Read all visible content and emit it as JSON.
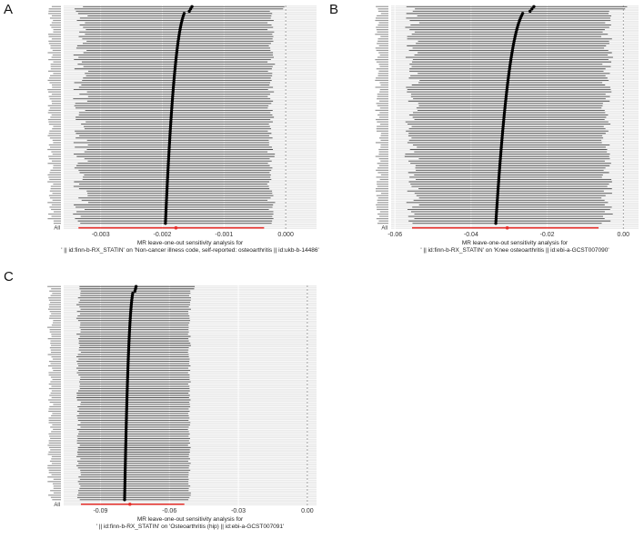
{
  "chart_data": [
    {
      "type": "forest",
      "panel_label": "A",
      "xlabel_line1": "MR leave-one-out sensitivity analysis for",
      "xlabel_line2": "' || id:finn-b-RX_STATIN' on 'Non-cancer illness code, self-reported: osteoarthritis || id:ukb-b-14486'",
      "x_ticks": [
        {
          "value": -0.003,
          "label": "-0.003"
        },
        {
          "value": -0.002,
          "label": "-0.002"
        },
        {
          "value": -0.001,
          "label": "-0.001"
        },
        {
          "value": 0.0,
          "label": "0.000"
        }
      ],
      "xlim": [
        -0.0036,
        0.0005
      ],
      "reference_line": 0,
      "n_snps": 95,
      "estimate_range": [
        -0.00195,
        -0.00152
      ],
      "ci_low_range": [
        -0.00345,
        -0.0032
      ],
      "ci_high_range": [
        -0.00045,
        -2e-05
      ],
      "overall": {
        "label": "All",
        "estimate": -0.00178,
        "ci_low": -0.00336,
        "ci_high": -0.00035
      },
      "highlight_color": "#e8302c",
      "point_color": "#000000"
    },
    {
      "type": "forest",
      "panel_label": "B",
      "xlabel_line1": "MR leave-one-out sensitivity analysis for",
      "xlabel_line2": "' || id:finn-b-RX_STATIN' on 'Knee osteoarthritis || id:ebi-a-GCST007090'",
      "x_ticks": [
        {
          "value": -0.06,
          "label": "-0.06"
        },
        {
          "value": -0.04,
          "label": "-0.04"
        },
        {
          "value": -0.02,
          "label": "-0.02"
        },
        {
          "value": 0.0,
          "label": "0.00"
        }
      ],
      "xlim": [
        -0.061,
        0.004
      ],
      "reference_line": 0,
      "n_snps": 95,
      "estimate_range": [
        -0.0335,
        -0.0235
      ],
      "ci_low_range": [
        -0.0575,
        -0.0535
      ],
      "ci_high_range": [
        -0.0095,
        0.001
      ],
      "overall": {
        "label": "All",
        "estimate": -0.0305,
        "ci_low": -0.0555,
        "ci_high": -0.0065
      },
      "highlight_color": "#e8302c",
      "point_color": "#000000"
    },
    {
      "type": "forest",
      "panel_label": "C",
      "xlabel_line1": "MR leave-one-out sensitivity analysis for",
      "xlabel_line2": "' || id:finn-b-RX_STATIN' on 'Osteoarthritis (hip) || id:ebi-a-GCST007091'",
      "x_ticks": [
        {
          "value": -0.09,
          "label": "-0.09"
        },
        {
          "value": -0.06,
          "label": "-0.06"
        },
        {
          "value": -0.03,
          "label": "-0.03"
        },
        {
          "value": 0.0,
          "label": "0.00"
        }
      ],
      "xlim": [
        -0.106,
        0.004
      ],
      "reference_line": 0,
      "n_snps": 95,
      "estimate_range": [
        -0.0795,
        -0.0745
      ],
      "ci_low_range": [
        -0.1005,
        -0.0985
      ],
      "ci_high_range": [
        -0.0535,
        -0.049
      ],
      "overall": {
        "label": "All",
        "estimate": -0.0772,
        "ci_low": -0.0985,
        "ci_high": -0.0535
      },
      "highlight_color": "#e8302c",
      "point_color": "#000000"
    }
  ]
}
